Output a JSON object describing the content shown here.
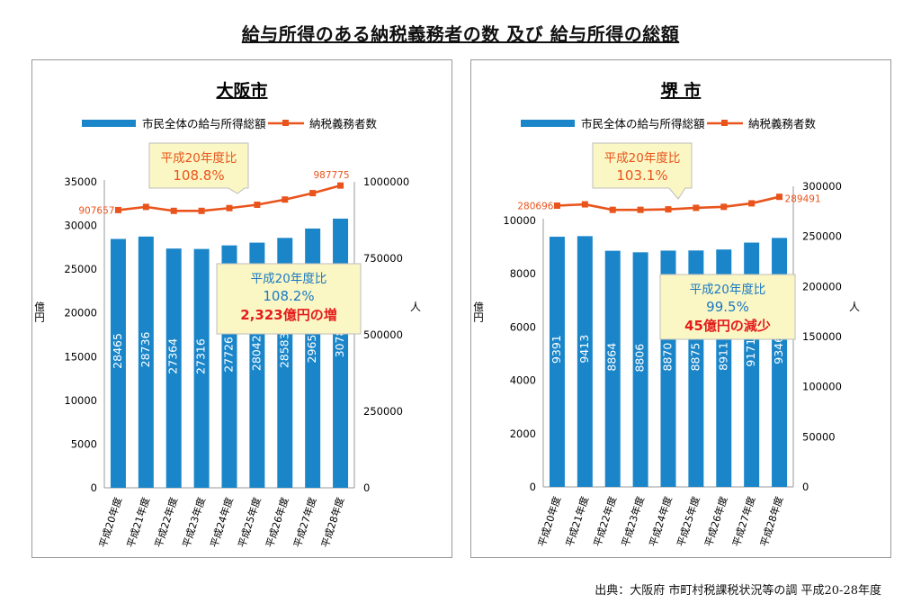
{
  "page": {
    "title": "給与所得のある納税義務者の数 及び 給与所得の総額",
    "source": "出典：大阪府 市町村税課税状況等の調 平成20-28年度"
  },
  "colors": {
    "bar": "#1a86c9",
    "line": "#e9541c",
    "callout_fill": "#fbf7c4",
    "callout_border": "#bdbdbd",
    "highlight_red": "#e51c1c",
    "highlight_blue": "#1a78c2"
  },
  "chart_data": [
    {
      "type": "bar",
      "title": "大阪市",
      "categories": [
        "平成20年度",
        "平成21年度",
        "平成22年度",
        "平成23年度",
        "平成24年度",
        "平成25年度",
        "平成26年度",
        "平成27年度",
        "平成28年度"
      ],
      "series": [
        {
          "name": "市民全体の給与所得総額",
          "axis": "left",
          "unit": "億円",
          "values": [
            28465,
            28736,
            27364,
            27316,
            27726,
            28042,
            28583,
            29654,
            30788
          ]
        },
        {
          "name": "納税義務者数",
          "type": "line",
          "axis": "right",
          "unit": "人",
          "values": [
            907657,
            918000,
            905000,
            905000,
            914000,
            925000,
            942000,
            963000,
            987775
          ]
        }
      ],
      "ylabel": "億円",
      "y2label": "人",
      "ylim": [
        0,
        35000
      ],
      "yticks": [
        0,
        5000,
        10000,
        15000,
        20000,
        25000,
        30000,
        35000
      ],
      "y2lim": [
        0,
        1000000
      ],
      "y2ticks": [
        0,
        250000,
        500000,
        750000,
        1000000
      ],
      "legend_position": "top",
      "grid": false,
      "line_labels": [
        "907657",
        "987775"
      ],
      "callout_line": {
        "line1": "平成20年度比",
        "line2": "108.8%"
      },
      "callout_bar": {
        "line1": "平成20年度比",
        "line2": "108.2%",
        "line3": "2,323億円の増"
      }
    },
    {
      "type": "bar",
      "title": "堺 市",
      "categories": [
        "平成20年度",
        "平成21年度",
        "平成22年度",
        "平成23年度",
        "平成24年度",
        "平成25年度",
        "平成26年度",
        "平成27年度",
        "平成28年度"
      ],
      "series": [
        {
          "name": "市民全体の給与所得総額",
          "axis": "left",
          "unit": "億円",
          "values": [
            9391,
            9413,
            8864,
            8806,
            8870,
            8875,
            8911,
            9171,
            9346
          ]
        },
        {
          "name": "納税義務者数",
          "type": "line",
          "axis": "right",
          "unit": "人",
          "values": [
            280696,
            282000,
            276500,
            276500,
            277000,
            278500,
            279500,
            283000,
            289491
          ]
        }
      ],
      "ylabel": "億円",
      "y2label": "人",
      "ylim": [
        0,
        10000
      ],
      "yticks": [
        0,
        2000,
        4000,
        6000,
        8000,
        10000
      ],
      "y2lim": [
        0,
        300000
      ],
      "y2ticks": [
        0,
        50000,
        100000,
        150000,
        200000,
        250000,
        300000
      ],
      "legend_position": "top",
      "grid": false,
      "line_labels": [
        "280696",
        "289491"
      ],
      "callout_line": {
        "line1": "平成20年度比",
        "line2": "103.1%"
      },
      "callout_bar": {
        "line1": "平成20年度比",
        "line2": "99.5%",
        "line3": "45億円の減少"
      }
    }
  ]
}
